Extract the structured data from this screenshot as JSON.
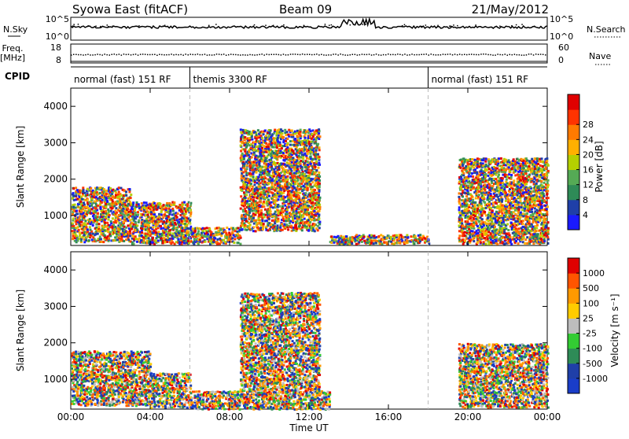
{
  "header": {
    "radar": "Syowa East (fitACF)",
    "beam": "Beam 09",
    "date": "21/May/2012"
  },
  "strips": {
    "nsky_label": "N.Sky",
    "nsearch_label": "N.Search",
    "counts_ticks_left": [
      "10^5",
      "10^0"
    ],
    "counts_ticks_right": [
      "10^5",
      "10^0"
    ],
    "freq_label_1": "Freq.",
    "freq_label_2": "[MHz]",
    "freq_ticks": [
      "18",
      "8"
    ],
    "nave_label": "Nave",
    "nave_ticks": [
      "60",
      "0"
    ],
    "cpid_label": "CPID"
  },
  "cpid_segments": [
    {
      "label": "normal (fast) 151 RF",
      "start_h": 0,
      "end_h": 6
    },
    {
      "label": "themis 3300 RF",
      "start_h": 6,
      "end_h": 18
    },
    {
      "label": "normal (fast) 151 RF",
      "start_h": 18,
      "end_h": 24
    }
  ],
  "colors": {
    "power_scale": [
      "#1a1aff",
      "#1f3fa8",
      "#2e8b57",
      "#55aa55",
      "#b5d000",
      "#ffb000",
      "#ff7a00",
      "#ff3300",
      "#e00000"
    ],
    "velocity_scale": [
      "#1a3dc8",
      "#1f3fa8",
      "#2e8b57",
      "#33cc33",
      "#bdbdbd",
      "#ffcc00",
      "#ff9900",
      "#ff5500",
      "#e00000"
    ]
  },
  "chart_data": [
    {
      "type": "heatmap",
      "name": "power",
      "xlabel": "",
      "ylabel": "Slant Range [km]",
      "xlim": [
        0,
        24
      ],
      "ylim": [
        180,
        4500
      ],
      "x_ticks": [
        "00:00",
        "04:00",
        "08:00",
        "12:00",
        "16:00",
        "20:00",
        "00:00"
      ],
      "y_ticks": [
        1000,
        2000,
        3000,
        4000
      ],
      "colorbar": {
        "label": "Power [dB]",
        "ticks": [
          "4",
          "8",
          "12",
          "16",
          "20",
          "24",
          "28"
        ]
      },
      "echo_regions": [
        {
          "t0": 0.0,
          "t1": 3.0,
          "r0": 300,
          "r1": 1800,
          "level": 22
        },
        {
          "t0": 3.0,
          "t1": 6.0,
          "r0": 250,
          "r1": 1400,
          "level": 16
        },
        {
          "t0": 5.5,
          "t1": 8.5,
          "r0": 250,
          "r1": 700,
          "level": 24
        },
        {
          "t0": 8.5,
          "t1": 12.5,
          "r0": 600,
          "r1": 3400,
          "level": 10
        },
        {
          "t0": 13.0,
          "t1": 18.0,
          "r0": 250,
          "r1": 500,
          "level": 20
        },
        {
          "t0": 19.5,
          "t1": 24.0,
          "r0": 250,
          "r1": 2600,
          "level": 18
        }
      ]
    },
    {
      "type": "heatmap",
      "name": "velocity",
      "xlabel": "Time UT",
      "ylabel": "Slant Range [km]",
      "xlim": [
        0,
        24
      ],
      "ylim": [
        180,
        4500
      ],
      "x_ticks": [
        "00:00",
        "04:00",
        "08:00",
        "12:00",
        "16:00",
        "20:00",
        "00:00"
      ],
      "y_ticks": [
        1000,
        2000,
        3000,
        4000
      ],
      "colorbar": {
        "label": "Velocity [m s⁻¹]",
        "ticks": [
          "1000",
          "500",
          "100",
          "25",
          "-25",
          "-100",
          "-500",
          "-1000"
        ]
      },
      "echo_regions": [
        {
          "t0": 0.0,
          "t1": 4.0,
          "r0": 300,
          "r1": 1800,
          "level": -150
        },
        {
          "t0": 4.0,
          "t1": 6.0,
          "r0": 250,
          "r1": 1200,
          "level": -200
        },
        {
          "t0": 6.0,
          "t1": 13.0,
          "r0": 200,
          "r1": 700,
          "level": 0
        },
        {
          "t0": 8.5,
          "t1": 12.5,
          "r0": 700,
          "r1": 3400,
          "level": -20
        },
        {
          "t0": 19.5,
          "t1": 24.0,
          "r0": 250,
          "r1": 2000,
          "level": 300
        }
      ]
    }
  ]
}
